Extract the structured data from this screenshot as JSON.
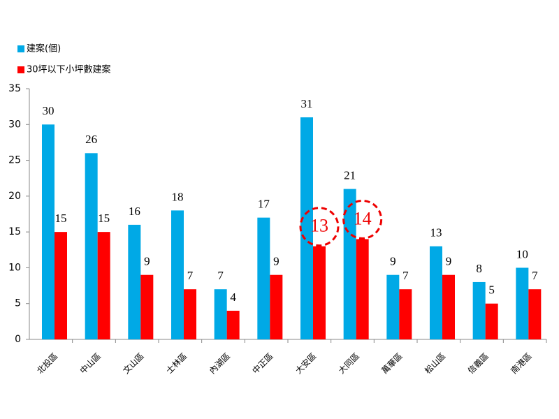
{
  "chart_data": {
    "type": "bar",
    "categories": [
      "北投區",
      "中山區",
      "文山區",
      "士林區",
      "內湖區",
      "中正區",
      "大安區",
      "大同區",
      "萬華區",
      "松山區",
      "信義區",
      "南港區"
    ],
    "series": [
      {
        "name": "建案(個)",
        "color": "#00a9e6",
        "values": [
          30,
          26,
          16,
          18,
          7,
          17,
          31,
          21,
          9,
          13,
          8,
          10
        ]
      },
      {
        "name": "30坪以下小坪數建案",
        "color": "#ff0000",
        "values": [
          15,
          15,
          9,
          7,
          4,
          9,
          13,
          14,
          7,
          9,
          5,
          7
        ],
        "highlight": [
          6,
          7
        ]
      }
    ],
    "ylim": [
      0,
      35
    ],
    "yticks": [
      0,
      5,
      10,
      15,
      20,
      25,
      30,
      35
    ],
    "grid": false,
    "legend": "top-left"
  }
}
